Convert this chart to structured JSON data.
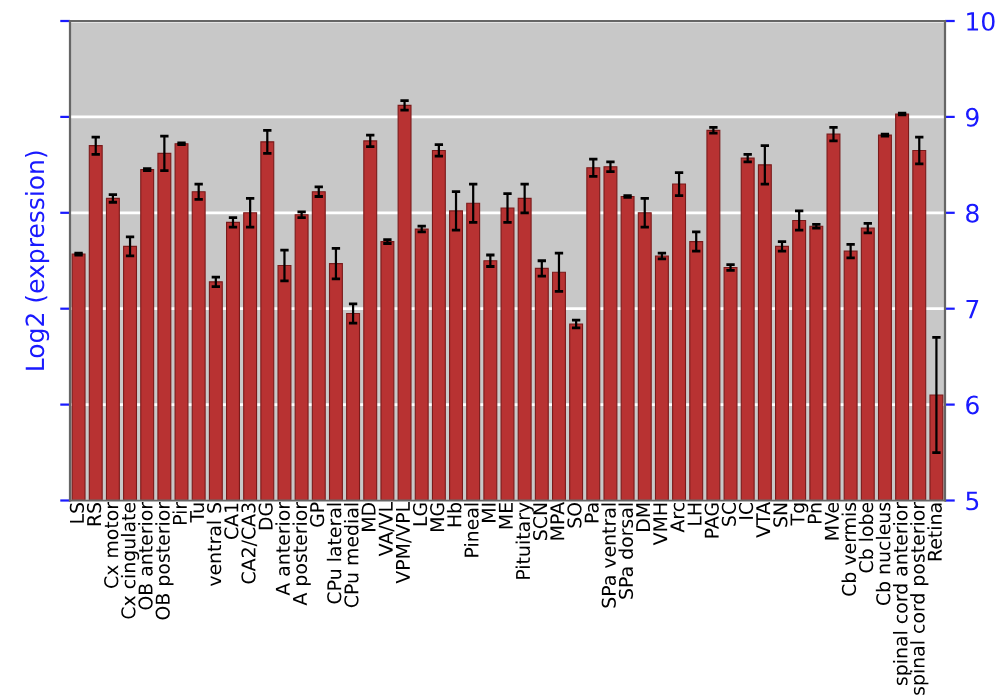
{
  "chart_data": {
    "type": "bar",
    "ylabel": "Log2 (expression)",
    "categories": [
      "LS",
      "RS",
      "Cx motor",
      "Cx cingulate",
      "OB anterior",
      "OB posterior",
      "Pir",
      "Tu",
      "ventral S",
      "CA1",
      "CA2/CA3",
      "DG",
      "A anterior",
      "A posterior",
      "GP",
      "CPu lateral",
      "CPu medial",
      "MD",
      "VA/VL",
      "VPM/VPL",
      "LG",
      "MG",
      "Hb",
      "Pineal",
      "MI",
      "ME",
      "Pituitary",
      "SCN",
      "MPA",
      "SO",
      "Pa",
      "SPa ventral",
      "SPa dorsal",
      "DM",
      "VMH",
      "Arc",
      "LH",
      "PAG",
      "SC",
      "IC",
      "VTA",
      "SN",
      "Tg",
      "Pn",
      "MVe",
      "Cb vermis",
      "Cb lobe",
      "Cb nucleus",
      "spinal cord anterior",
      "spinal cord posterior",
      "Retina"
    ],
    "values": [
      7.57,
      8.7,
      8.15,
      7.65,
      8.45,
      8.62,
      8.72,
      8.22,
      7.28,
      7.9,
      8.0,
      8.74,
      7.45,
      7.98,
      8.22,
      7.47,
      6.95,
      8.75,
      7.7,
      9.12,
      7.83,
      8.65,
      8.02,
      8.1,
      7.5,
      8.05,
      8.15,
      7.42,
      7.38,
      6.84,
      8.47,
      8.48,
      8.17,
      8.0,
      7.55,
      8.3,
      7.7,
      8.86,
      7.43,
      8.57,
      8.5,
      7.65,
      7.92,
      7.86,
      8.82,
      7.6,
      7.84,
      8.81,
      9.03,
      8.65,
      6.1
    ],
    "errors": [
      0.01,
      0.09,
      0.04,
      0.1,
      0.01,
      0.18,
      0.01,
      0.08,
      0.05,
      0.05,
      0.15,
      0.12,
      0.16,
      0.03,
      0.05,
      0.16,
      0.1,
      0.06,
      0.02,
      0.05,
      0.03,
      0.06,
      0.2,
      0.2,
      0.06,
      0.15,
      0.15,
      0.08,
      0.2,
      0.04,
      0.09,
      0.05,
      0.01,
      0.15,
      0.03,
      0.12,
      0.1,
      0.03,
      0.03,
      0.04,
      0.2,
      0.05,
      0.1,
      0.02,
      0.07,
      0.07,
      0.05,
      0.01,
      0.01,
      0.14,
      0.6
    ],
    "color": "#b83232",
    "ylim": [
      5,
      10
    ],
    "yticks": [
      5,
      6,
      7,
      8,
      9,
      10
    ],
    "grid": "y"
  }
}
